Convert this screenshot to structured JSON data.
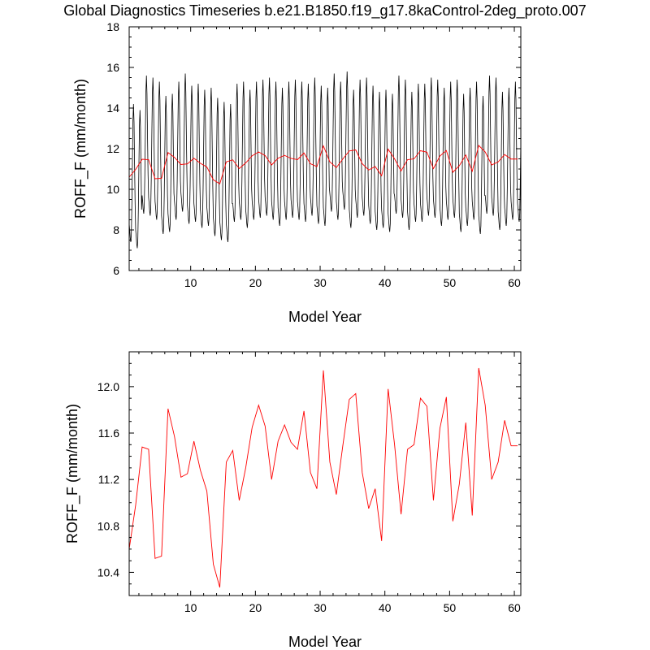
{
  "title": "Global Diagnostics Timeseries b.e21.B1850.f19_g17.8kaControl-2deg_proto.007",
  "colors": {
    "monthly": "#000000",
    "annual": "#ff0000",
    "axis": "#000000"
  },
  "chart_data": [
    {
      "type": "line",
      "xlabel": "Model Year",
      "ylabel": "ROFF_F (mm/month)",
      "xlim": [
        0.5,
        61
      ],
      "ylim": [
        6,
        18
      ],
      "xticks": [
        10,
        20,
        30,
        40,
        50,
        60
      ],
      "yticks": [
        6,
        8,
        10,
        12,
        14,
        16,
        18
      ],
      "xtick_labels": [
        "10",
        "20",
        "30",
        "40",
        "50",
        "60"
      ],
      "ytick_labels": [
        "6",
        "8",
        "10",
        "12",
        "14",
        "16",
        "18"
      ],
      "series": [
        {
          "kind": "monthly",
          "x_start": 0.5,
          "x_step": 0.0833333,
          "cycle": [
            9.3,
            9.0,
            8.6,
            8.4,
            8.8,
            10.3,
            12.4,
            14.4,
            15.2,
            14.3,
            12.2,
            10.3
          ],
          "year_anomaly": [
            -1.0,
            -1.3,
            0.4,
            0.3,
            0.1,
            -0.6,
            -0.5,
            0.1,
            0.5,
            -0.1,
            0.0,
            -0.3,
            -0.2,
            -0.7,
            -0.9,
            -1.0,
            0.0,
            0.1,
            -0.3,
            0.1,
            0.2,
            0.3,
            0.1,
            -0.2,
            0.1,
            0.2,
            0.1,
            0.0,
            0.3,
            -0.1,
            -0.2,
            0.5,
            0.1,
            0.6,
            -0.3,
            0.2,
            0.3,
            -0.1,
            -0.4,
            -0.3,
            -0.5,
            0.4,
            0.2,
            -0.4,
            0.0,
            0.0,
            0.3,
            0.2,
            -0.2,
            0.1,
            0.2,
            -0.5,
            -0.2,
            0.1,
            -0.6,
            0.4,
            0.3,
            -0.4,
            -0.2,
            0.1,
            0.0
          ]
        },
        {
          "kind": "annual",
          "x": [
            0.5,
            1.5,
            2.5,
            3.5,
            4.5,
            5.5,
            6.5,
            7.5,
            8.5,
            9.5,
            10.5,
            11.5,
            12.5,
            13.5,
            14.5,
            15.5,
            16.5,
            17.5,
            18.5,
            19.5,
            20.5,
            21.5,
            22.5,
            23.5,
            24.5,
            25.5,
            26.5,
            27.5,
            28.5,
            29.5,
            30.5,
            31.5,
            32.5,
            33.5,
            34.5,
            35.5,
            36.5,
            37.5,
            38.5,
            39.5,
            40.5,
            41.5,
            42.5,
            43.5,
            44.5,
            45.5,
            46.5,
            47.5,
            48.5,
            49.5,
            50.5,
            51.5,
            52.5,
            53.5,
            54.5,
            55.5,
            56.5,
            57.5,
            58.5,
            59.5,
            60.5
          ],
          "y": [
            10.6,
            10.98,
            11.48,
            11.46,
            10.52,
            10.54,
            11.81,
            11.57,
            11.22,
            11.25,
            11.53,
            11.28,
            11.1,
            10.47,
            10.27,
            11.35,
            11.45,
            11.02,
            11.3,
            11.65,
            11.84,
            11.66,
            11.2,
            11.53,
            11.67,
            11.52,
            11.46,
            11.79,
            11.26,
            11.12,
            12.14,
            11.35,
            11.07,
            11.49,
            11.89,
            11.94,
            11.26,
            10.95,
            11.12,
            10.67,
            11.98,
            11.5,
            10.9,
            11.46,
            11.5,
            11.9,
            11.83,
            11.02,
            11.64,
            11.91,
            10.84,
            11.16,
            11.69,
            10.89,
            12.16,
            11.84,
            11.2,
            11.35,
            11.71,
            11.49,
            11.49
          ]
        }
      ]
    },
    {
      "type": "line",
      "xlabel": "Model Year",
      "ylabel": "ROFF_F (mm/month)",
      "xlim": [
        0.5,
        61
      ],
      "ylim": [
        10.2,
        12.3
      ],
      "xticks": [
        10,
        20,
        30,
        40,
        50,
        60
      ],
      "yticks": [
        10.4,
        10.8,
        11.2,
        11.6,
        12.0
      ],
      "xtick_labels": [
        "10",
        "20",
        "30",
        "40",
        "50",
        "60"
      ],
      "ytick_labels": [
        "10.4",
        "10.8",
        "11.2",
        "11.6",
        "12.0"
      ],
      "series": [
        {
          "kind": "annual",
          "x": [
            0.5,
            1.5,
            2.5,
            3.5,
            4.5,
            5.5,
            6.5,
            7.5,
            8.5,
            9.5,
            10.5,
            11.5,
            12.5,
            13.5,
            14.5,
            15.5,
            16.5,
            17.5,
            18.5,
            19.5,
            20.5,
            21.5,
            22.5,
            23.5,
            24.5,
            25.5,
            26.5,
            27.5,
            28.5,
            29.5,
            30.5,
            31.5,
            32.5,
            33.5,
            34.5,
            35.5,
            36.5,
            37.5,
            38.5,
            39.5,
            40.5,
            41.5,
            42.5,
            43.5,
            44.5,
            45.5,
            46.5,
            47.5,
            48.5,
            49.5,
            50.5,
            51.5,
            52.5,
            53.5,
            54.5,
            55.5,
            56.5,
            57.5,
            58.5,
            59.5,
            60.5
          ],
          "y": [
            10.6,
            10.98,
            11.48,
            11.46,
            10.52,
            10.54,
            11.81,
            11.57,
            11.22,
            11.25,
            11.53,
            11.28,
            11.1,
            10.47,
            10.27,
            11.35,
            11.45,
            11.02,
            11.3,
            11.65,
            11.84,
            11.66,
            11.2,
            11.53,
            11.67,
            11.52,
            11.46,
            11.79,
            11.26,
            11.12,
            12.14,
            11.35,
            11.07,
            11.49,
            11.89,
            11.94,
            11.26,
            10.95,
            11.12,
            10.67,
            11.98,
            11.5,
            10.9,
            11.46,
            11.5,
            11.9,
            11.83,
            11.02,
            11.64,
            11.91,
            10.84,
            11.16,
            11.69,
            10.89,
            12.16,
            11.84,
            11.2,
            11.35,
            11.71,
            11.49,
            11.49
          ]
        }
      ]
    }
  ]
}
